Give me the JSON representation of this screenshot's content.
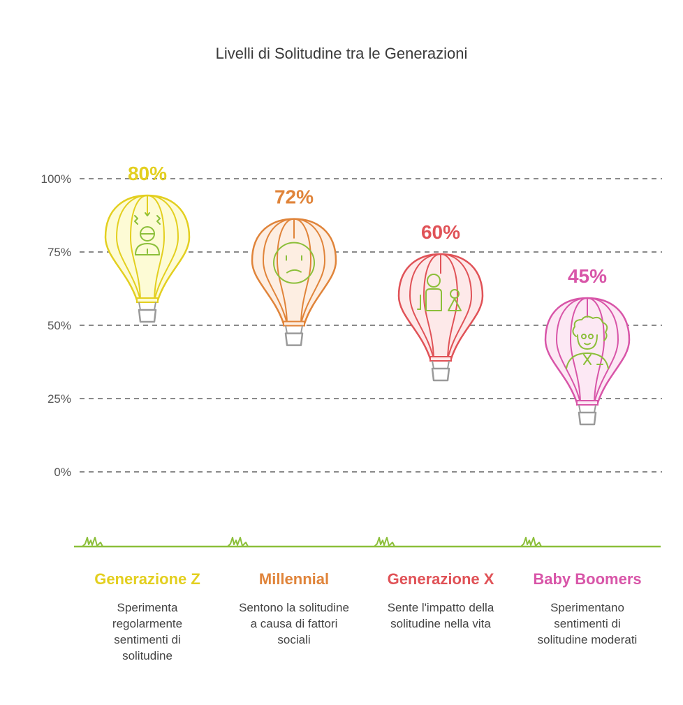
{
  "chart_data": {
    "type": "bar",
    "title": "Livelli di Solitudine tra le Generazioni",
    "ylim": [
      0,
      100
    ],
    "yticks": [
      {
        "value": 0,
        "label": "0%"
      },
      {
        "value": 25,
        "label": "25%"
      },
      {
        "value": 50,
        "label": "50%"
      },
      {
        "value": 75,
        "label": "75%"
      },
      {
        "value": 100,
        "label": "100%"
      }
    ],
    "grid": true,
    "categories": [
      "Generazione Z",
      "Millennial",
      "Generazione X",
      "Baby Boomers"
    ],
    "values": [
      80,
      72,
      60,
      45
    ],
    "value_labels": [
      "80%",
      "72%",
      "60%",
      "45%"
    ],
    "descriptions": [
      [
        "Sperimenta",
        "regolarmente",
        "sentimenti di",
        "solitudine"
      ],
      [
        "Sentono la solitudine",
        "a causa di fattori",
        "sociali"
      ],
      [
        "Sente l'impatto della",
        "solitudine nella vita"
      ],
      [
        "Sperimentano",
        "sentimenti di",
        "solitudine moderati"
      ]
    ],
    "colors": [
      "#e3cf1f",
      "#e0843a",
      "#e05257",
      "#d855a8"
    ],
    "fills": [
      "#fdfbd5",
      "#fdeee2",
      "#fde9e9",
      "#fce8f4"
    ],
    "icons": [
      "stressed-person-icon",
      "sad-face-icon",
      "parent-child-icon",
      "elderly-person-icon"
    ]
  }
}
